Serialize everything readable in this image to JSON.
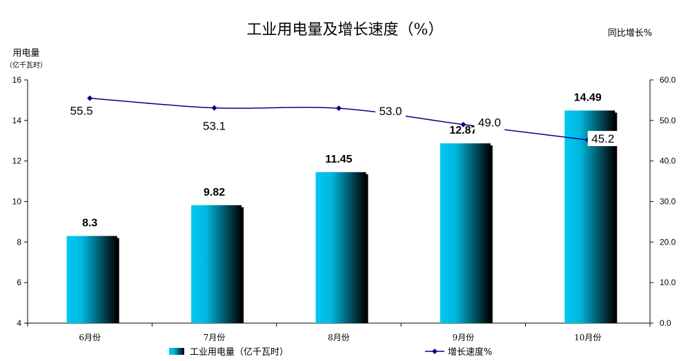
{
  "chart_data": {
    "type": "bar",
    "title": "工业用电量及增长速度（%）",
    "categories": [
      "6月份",
      "7月份",
      "8月份",
      "9月份",
      "10月份"
    ],
    "series": [
      {
        "name": "工业用电量（亿千瓦时）",
        "type": "bar",
        "axis": "left",
        "values": [
          8.3,
          9.82,
          11.45,
          12.87,
          14.49
        ],
        "labels": [
          "8.3",
          "9.82",
          "11.45",
          "12.87",
          "14.49"
        ]
      },
      {
        "name": "增长速度%",
        "type": "line",
        "axis": "right",
        "values": [
          55.5,
          53.1,
          53.0,
          49.0,
          45.2
        ],
        "labels": [
          "55.5",
          "53.1",
          "53.0",
          "49.0",
          "45.2"
        ]
      }
    ],
    "ylabel": "用电量",
    "ylabel_unit": "（亿千瓦时）",
    "y2label": "同比增长%",
    "ylim": [
      4,
      16
    ],
    "yticks": [
      "4",
      "6",
      "8",
      "10",
      "12",
      "14",
      "16"
    ],
    "y2lim": [
      0,
      60
    ],
    "y2ticks": [
      "0.0",
      "10.0",
      "20.0",
      "30.0",
      "40.0",
      "50.0",
      "60.0"
    ],
    "grid": false,
    "legend": "bottom",
    "colors": {
      "bar_light": "#00c8f0",
      "bar_dark": "#000000",
      "line": "#000080"
    }
  }
}
